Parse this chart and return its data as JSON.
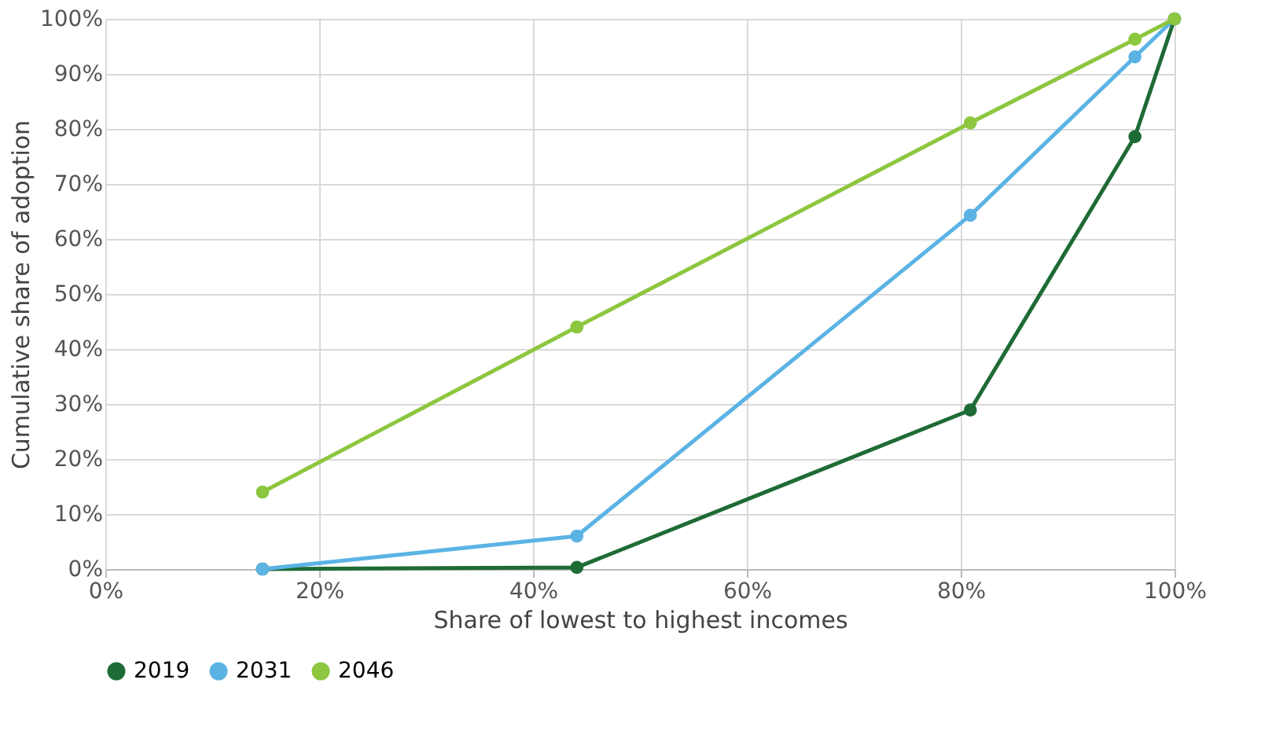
{
  "chart_data": {
    "type": "line",
    "xlabel": "Share of lowest to highest incomes",
    "ylabel": "Cumulative share of adoption",
    "x": [
      14.7,
      44.1,
      80.9,
      96.3,
      100
    ],
    "series": [
      {
        "name": "2019",
        "color": "#1e6b35",
        "values": [
          0,
          0.3,
          28.9,
          78.6,
          100
        ]
      },
      {
        "name": "2031",
        "color": "#5bb3e4",
        "values": [
          0,
          6,
          64.3,
          93.1,
          100
        ]
      },
      {
        "name": "2046",
        "color": "#8dc63f",
        "values": [
          14,
          44,
          81.1,
          96.3,
          100
        ]
      }
    ],
    "xlim": [
      0,
      100
    ],
    "ylim": [
      0,
      100
    ],
    "xticks": [
      {
        "value": 0,
        "label": "0%"
      },
      {
        "value": 20,
        "label": "20%"
      },
      {
        "value": 40,
        "label": "40%"
      },
      {
        "value": 60,
        "label": "60%"
      },
      {
        "value": 80,
        "label": "80%"
      },
      {
        "value": 100,
        "label": "100%"
      }
    ],
    "yticks": [
      {
        "value": 0,
        "label": "0%"
      },
      {
        "value": 10,
        "label": "10%"
      },
      {
        "value": 20,
        "label": "20%"
      },
      {
        "value": 30,
        "label": "30%"
      },
      {
        "value": 40,
        "label": "40%"
      },
      {
        "value": 50,
        "label": "50%"
      },
      {
        "value": 60,
        "label": "60%"
      },
      {
        "value": 70,
        "label": "70%"
      },
      {
        "value": 80,
        "label": "80%"
      },
      {
        "value": 90,
        "label": "90%"
      },
      {
        "value": 100,
        "label": "100%"
      }
    ],
    "grid": true,
    "legend": "bottom",
    "marker": "circle",
    "line_style": "solid"
  }
}
